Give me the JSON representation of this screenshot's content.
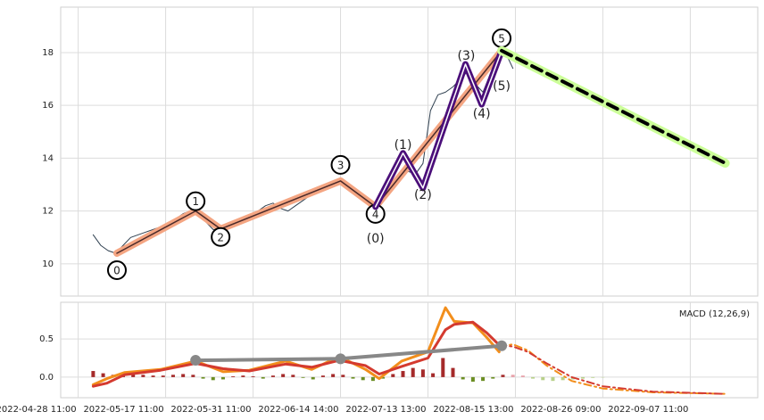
{
  "chart_data": [
    {
      "type": "line",
      "xlim": [
        -14,
        544
      ],
      "ylim": [
        8.78,
        19.72
      ],
      "yticks": [
        10,
        12,
        14,
        16,
        18
      ],
      "grid": true,
      "series": [
        {
          "color": "#2f4050",
          "width": 1,
          "x": [
            12,
            18,
            24,
            30,
            36,
            42,
            48,
            54,
            60,
            66,
            72,
            78,
            84,
            90,
            96,
            102,
            108,
            114,
            120,
            126,
            132,
            138,
            144,
            150,
            156,
            162,
            168,
            174,
            180,
            186,
            192,
            198,
            204,
            210,
            216,
            222,
            228,
            234,
            240,
            246,
            252,
            258,
            264,
            270,
            276,
            282,
            288,
            294,
            300,
            306,
            312,
            318,
            324,
            330,
            336,
            342,
            348
          ],
          "values": [
            11.1,
            10.7,
            10.5,
            10.4,
            10.7,
            11.0,
            11.1,
            11.2,
            11.3,
            11.4,
            11.5,
            11.7,
            11.9,
            12.0,
            11.9,
            11.6,
            11.3,
            11.3,
            11.5,
            11.6,
            11.7,
            11.8,
            12.0,
            12.2,
            12.3,
            12.1,
            12.0,
            12.2,
            12.4,
            12.6,
            12.8,
            13.0,
            13.1,
            13.2,
            13.0,
            12.8,
            12.6,
            12.3,
            12.2,
            12.6,
            13.0,
            13.3,
            13.5,
            13.4,
            13.8,
            15.8,
            16.4,
            16.5,
            16.7,
            17.0,
            17.3,
            16.8,
            16.5,
            17.2,
            17.8,
            18.0,
            17.4
          ]
        },
        {
          "color": "#f4a582",
          "width": 8,
          "outline": "#4a2a2a",
          "circled": true,
          "labels": [
            "0",
            "1",
            "2",
            "3",
            "4",
            "5"
          ],
          "x": [
            31,
            94,
            114,
            210,
            238,
            339
          ],
          "values": [
            10.4,
            12.0,
            11.32,
            13.14,
            12.16,
            18.07
          ]
        },
        {
          "color": "#4b0f7a",
          "width": 7,
          "outline": "#ffffff",
          "labels": [
            "(0)",
            "(1)",
            "(2)",
            "(3)",
            "(4)",
            "(5)"
          ],
          "x": [
            238,
            260,
            276,
            310,
            323,
            339
          ],
          "values": [
            12.16,
            14.19,
            12.87,
            17.56,
            16.04,
            18.07
          ]
        },
        {
          "color": "#000000",
          "width": 4,
          "dash": true,
          "glow": "#ccff99",
          "x": [
            339,
            518
          ],
          "values": [
            18.07,
            13.81
          ]
        }
      ]
    },
    {
      "type": "line",
      "title": "MACD (12,26,9)",
      "xlim": [
        -14,
        544
      ],
      "ylim": [
        -0.27,
        0.98
      ],
      "yticks": [
        {
          "value": 0,
          "label": "0.0"
        },
        0.5
      ],
      "grid": true,
      "xticks": [
        {
          "value": 0,
          "label": "2022-04-28 11:00"
        },
        {
          "value": 70,
          "label": "2022-05-17 11:00"
        },
        {
          "value": 140,
          "label": "2022-05-31 11:00"
        },
        {
          "value": 210,
          "label": "2022-06-14 14:00"
        },
        {
          "value": 280,
          "label": "2022-07-13 13:00"
        },
        {
          "value": 350,
          "label": "2022-08-15 13:00"
        },
        {
          "value": 420,
          "label": "2022-08-26 09:00"
        },
        {
          "value": 490,
          "label": "2022-09-07 11:00"
        }
      ],
      "series": [
        {
          "kind": "bar",
          "color": "#a52a2a",
          "negative_color": "#6b8e23",
          "x": [
            12,
            20,
            28,
            36,
            44,
            52,
            60,
            68,
            76,
            84,
            92,
            100,
            108,
            116,
            124,
            132,
            140,
            148,
            156,
            164,
            172,
            180,
            188,
            196,
            204,
            212,
            220,
            228,
            236,
            244,
            252,
            260,
            268,
            276,
            284,
            292,
            300,
            308,
            316,
            324,
            332,
            340
          ],
          "values": [
            0.08,
            0.05,
            0.03,
            0.02,
            0.04,
            0.03,
            0.02,
            0.02,
            0.03,
            0.04,
            0.03,
            -0.02,
            -0.04,
            -0.03,
            0.01,
            0.02,
            0.01,
            -0.02,
            0.02,
            0.04,
            0.03,
            -0.01,
            -0.03,
            0.02,
            0.04,
            0.03,
            -0.02,
            -0.04,
            -0.05,
            -0.02,
            0.04,
            0.08,
            0.12,
            0.1,
            0.05,
            0.25,
            0.12,
            -0.03,
            -0.06,
            -0.05,
            -0.02,
            0.03
          ]
        },
        {
          "kind": "bar",
          "color": "#e8a0a8",
          "negative_color": "#b8d08a",
          "x": [
            348,
            356,
            364,
            372,
            380,
            388,
            396,
            404,
            412,
            420
          ],
          "values": [
            0.03,
            0.02,
            -0.02,
            -0.04,
            -0.05,
            -0.04,
            -0.03,
            -0.02,
            -0.01,
            -0.005
          ]
        },
        {
          "color": "#f28e1c",
          "width": 3,
          "x": [
            12,
            23,
            37,
            66,
            94,
            116,
            137,
            166,
            187,
            209,
            230,
            241,
            259,
            280,
            294,
            301,
            316,
            327,
            337
          ],
          "values": [
            -0.1,
            -0.02,
            0.06,
            0.1,
            0.21,
            0.07,
            0.09,
            0.21,
            0.1,
            0.27,
            0.1,
            -0.02,
            0.21,
            0.33,
            0.91,
            0.73,
            0.71,
            0.52,
            0.33
          ]
        },
        {
          "color": "#d43a2f",
          "width": 3,
          "x": [
            12,
            23,
            37,
            66,
            94,
            116,
            137,
            166,
            187,
            209,
            230,
            241,
            259,
            280,
            294,
            301,
            316,
            327,
            337
          ],
          "values": [
            -0.12,
            -0.08,
            0.03,
            0.09,
            0.18,
            0.11,
            0.08,
            0.17,
            0.13,
            0.22,
            0.15,
            0.04,
            0.14,
            0.25,
            0.62,
            0.69,
            0.72,
            0.58,
            0.42
          ]
        },
        {
          "color": "#f28e1c",
          "width": 2,
          "dash": true,
          "x": [
            337,
            348,
            360,
            375,
            395,
            420,
            460,
            518
          ],
          "values": [
            0.4,
            0.43,
            0.35,
            0.15,
            -0.05,
            -0.15,
            -0.2,
            -0.22
          ]
        },
        {
          "color": "#d43a2f",
          "width": 2,
          "dash": true,
          "x": [
            337,
            348,
            360,
            375,
            395,
            420,
            460,
            518
          ],
          "values": [
            0.42,
            0.4,
            0.33,
            0.18,
            0.0,
            -0.12,
            -0.19,
            -0.22
          ]
        },
        {
          "color": "#888888",
          "width": 4,
          "markers": true,
          "x": [
            94,
            210,
            339
          ],
          "values": [
            0.22,
            0.24,
            0.41
          ]
        }
      ]
    }
  ]
}
